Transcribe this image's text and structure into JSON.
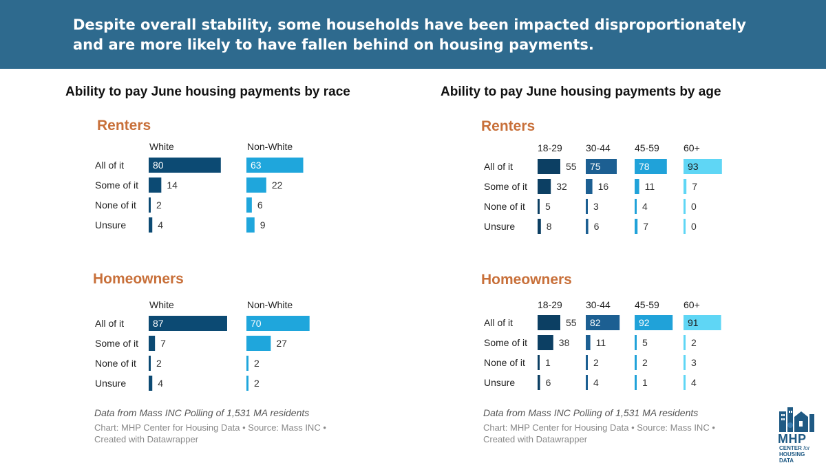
{
  "headline": "Despite overall stability, some households have been impacted disproportionately and are more likely to have fallen behind on housing payments.",
  "colors": {
    "banner": "#2e6a8e",
    "section_title": "#c8703a",
    "white": "#0c4a73",
    "non_white": "#1fa6dc",
    "age_18_29": "#0c3f63",
    "age_30_44": "#1c5f92",
    "age_45_59": "#20a2d9",
    "age_60_plus": "#5fd6f5"
  },
  "left_panel": {
    "title": "Ability to pay June housing payments by race",
    "note": "Data from Mass INC Polling of 1,531 MA residents",
    "credit": "Chart: MHP Center for Housing Data • Source: Mass INC • Created with Datawrapper"
  },
  "right_panel": {
    "title": "Ability to pay June housing payments by age",
    "note": "Data from Mass INC Polling of 1,531 MA residents",
    "credit": "Chart: MHP Center for Housing Data • Source: Mass INC • Created with Datawrapper"
  },
  "logo": {
    "name": "MHP",
    "subtitle_line1": "CENTER",
    "subtitle_for": "for",
    "subtitle_line2": "HOUSING DATA"
  },
  "chart_data": [
    {
      "type": "bar",
      "title": "Renters",
      "group": "race",
      "categories": [
        "All of it",
        "Some of it",
        "None of it",
        "Unsure"
      ],
      "series": [
        {
          "name": "White",
          "values": [
            80,
            14,
            2,
            4
          ]
        },
        {
          "name": "Non-White",
          "values": [
            63,
            22,
            6,
            9
          ]
        }
      ]
    },
    {
      "type": "bar",
      "title": "Homeowners",
      "group": "race",
      "categories": [
        "All of it",
        "Some of it",
        "None of it",
        "Unsure"
      ],
      "series": [
        {
          "name": "White",
          "values": [
            87,
            7,
            2,
            4
          ]
        },
        {
          "name": "Non-White",
          "values": [
            70,
            27,
            2,
            2
          ]
        }
      ]
    },
    {
      "type": "bar",
      "title": "Renters",
      "group": "age",
      "categories": [
        "All of it",
        "Some of it",
        "None of it",
        "Unsure"
      ],
      "series": [
        {
          "name": "18-29",
          "values": [
            55,
            32,
            5,
            8
          ]
        },
        {
          "name": "30-44",
          "values": [
            75,
            16,
            3,
            6
          ]
        },
        {
          "name": "45-59",
          "values": [
            78,
            11,
            4,
            7
          ]
        },
        {
          "name": "60+",
          "values": [
            93,
            7,
            0,
            0
          ]
        }
      ]
    },
    {
      "type": "bar",
      "title": "Homeowners",
      "group": "age",
      "categories": [
        "All of it",
        "Some of it",
        "None of it",
        "Unsure"
      ],
      "series": [
        {
          "name": "18-29",
          "values": [
            55,
            38,
            1,
            6
          ]
        },
        {
          "name": "30-44",
          "values": [
            82,
            11,
            2,
            4
          ]
        },
        {
          "name": "45-59",
          "values": [
            92,
            5,
            2,
            1
          ]
        },
        {
          "name": "60+",
          "values": [
            91,
            2,
            3,
            4
          ]
        }
      ]
    }
  ]
}
